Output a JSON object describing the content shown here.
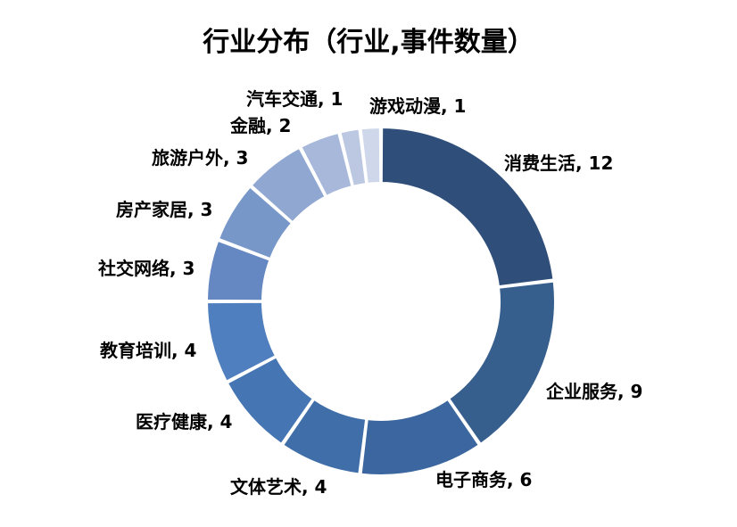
{
  "chart_data": {
    "type": "pie",
    "title": "行业分布（行业,事件数量）",
    "categories": [
      "消费生活",
      "企业服务",
      "电子商务",
      "文体艺术",
      "医疗健康",
      "教育培训",
      "社交网络",
      "房产家居",
      "旅游户外",
      "金融",
      "汽车交通",
      "游戏动漫"
    ],
    "values": [
      12,
      9,
      6,
      4,
      4,
      4,
      3,
      3,
      3,
      2,
      1,
      1
    ],
    "labels": [
      "消费生活, 12",
      "企业服务, 9",
      "电子商务, 6",
      "文体艺术, 4",
      "医疗健康, 4",
      "教育培训, 4",
      "社交网络, 3",
      "房产家居, 3",
      "旅游户外, 3",
      "金融, 2",
      "汽车交通, 1",
      "游戏动漫, 1"
    ],
    "colors": [
      "#2f4f7a",
      "#375f8e",
      "#3b66a0",
      "#3f6ea9",
      "#4575b2",
      "#4f7fbf",
      "#6688c2",
      "#7897c9",
      "#90a7d1",
      "#a7b8da",
      "#bcc8e2",
      "#cfd7ea"
    ],
    "legend": "none",
    "style": "donut"
  }
}
